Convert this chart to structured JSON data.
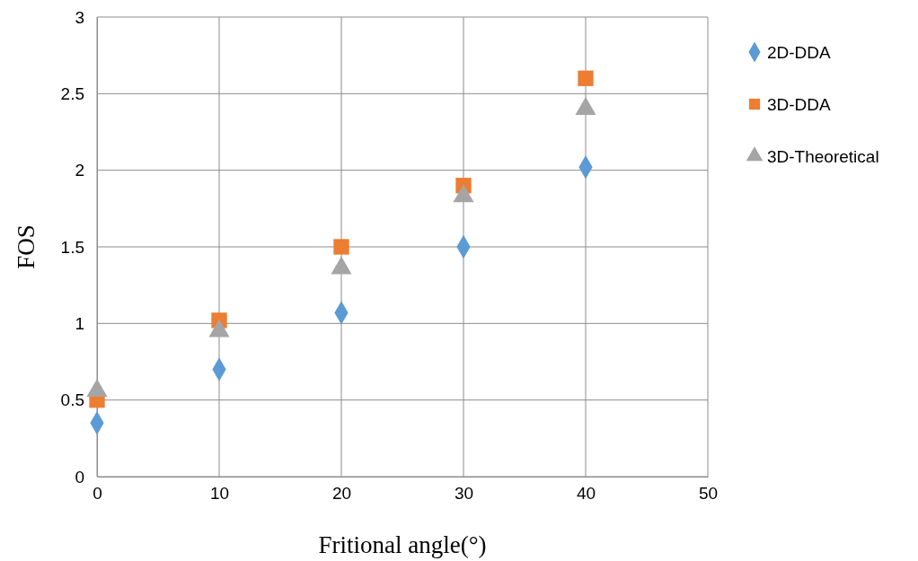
{
  "chart_data": {
    "type": "scatter",
    "xlabel": "Fritional angle(°)",
    "ylabel": "FOS",
    "x": [
      0,
      10,
      20,
      30,
      40
    ],
    "series": [
      {
        "name": "2D-DDA",
        "color": "#5b9bd5",
        "marker": "diamond",
        "values": [
          0.35,
          0.7,
          1.07,
          1.5,
          2.02
        ]
      },
      {
        "name": "3D-DDA",
        "color": "#ed7d31",
        "marker": "square",
        "values": [
          0.5,
          1.02,
          1.5,
          1.9,
          2.6
        ]
      },
      {
        "name": "3D-Theoretical",
        "color": "#a5a5a5",
        "marker": "triangle",
        "values": [
          0.56,
          0.95,
          1.36,
          1.83,
          2.4
        ]
      }
    ],
    "xlim": [
      0,
      50
    ],
    "xticks": [
      0,
      10,
      20,
      30,
      40,
      50
    ],
    "ylim": [
      0,
      3
    ],
    "yticks": [
      0,
      0.5,
      1,
      1.5,
      2,
      2.5,
      3
    ],
    "grid": true,
    "legend": "right"
  }
}
